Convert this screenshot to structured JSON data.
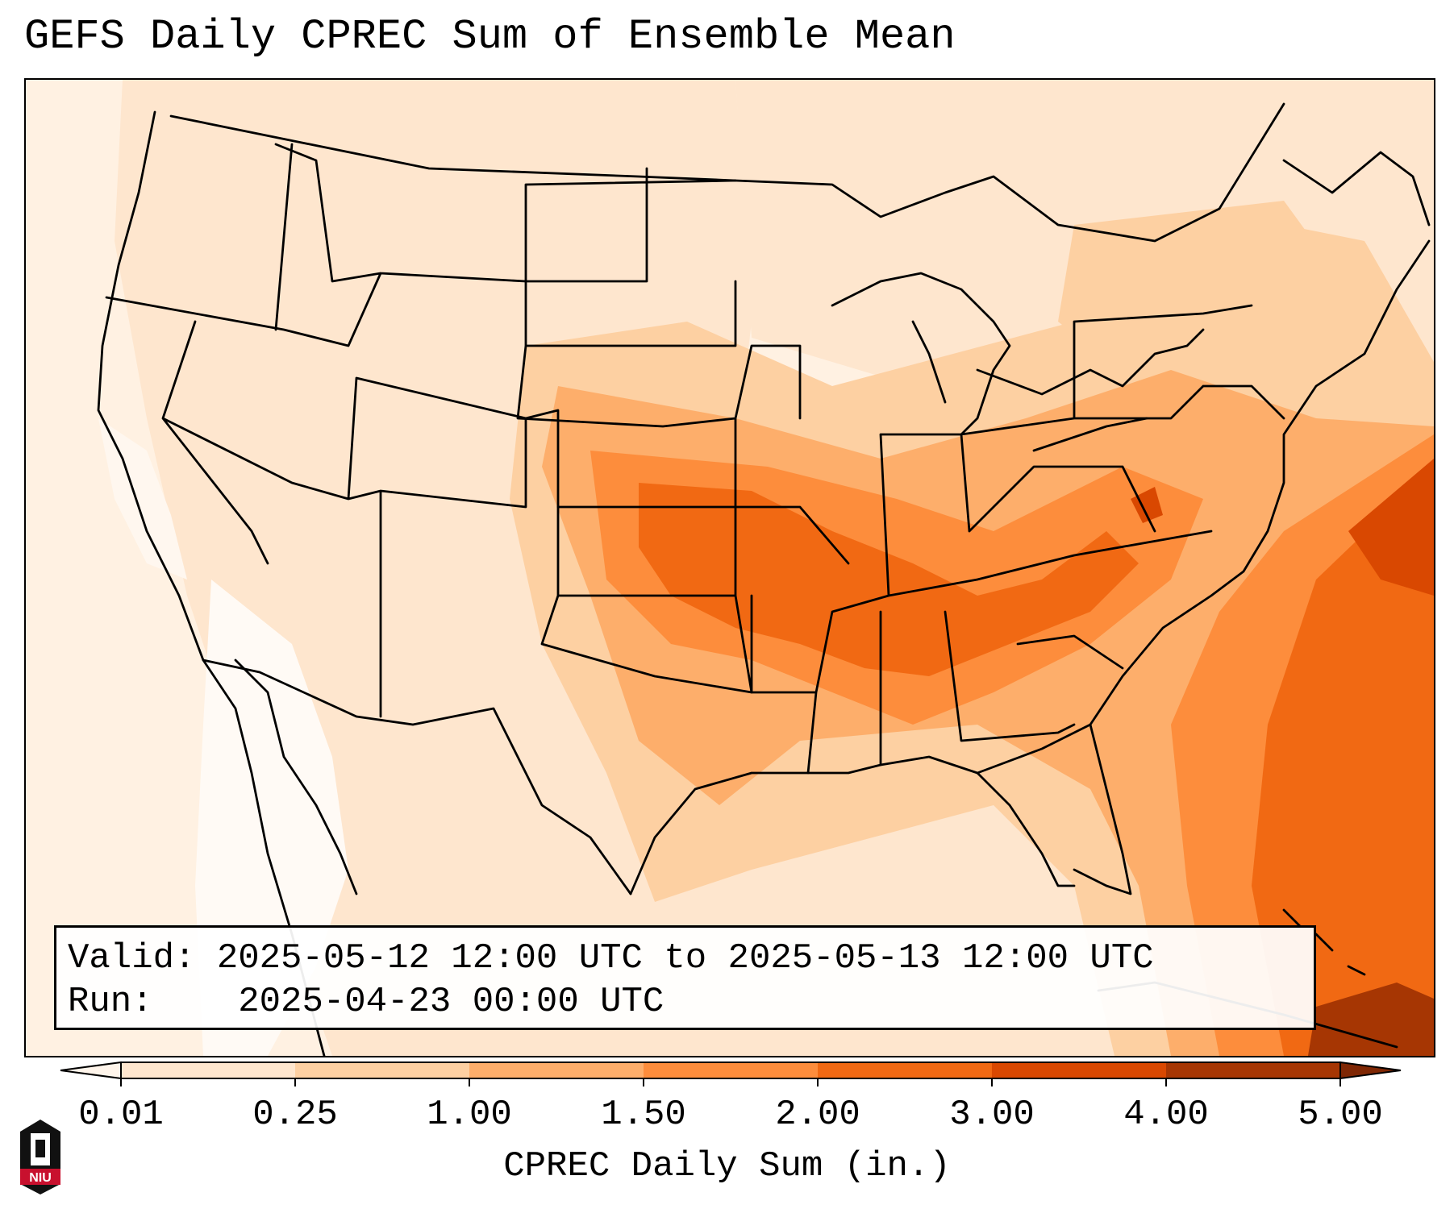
{
  "title": "GEFS Daily CPREC Sum of Ensemble Mean",
  "info": {
    "valid_prefix": "Valid:",
    "valid_value": "2025-05-12 12:00 UTC to 2025-05-13 12:00 UTC",
    "run_prefix": "Run:",
    "run_value": "2025-04-23 00:00 UTC"
  },
  "colorbar": {
    "label": "CPREC Daily Sum (in.)",
    "ticks": [
      "0.01",
      "0.25",
      "1.00",
      "1.50",
      "2.00",
      "3.00",
      "4.00",
      "5.00"
    ],
    "colors": [
      "#fff5eb",
      "#fee6ce",
      "#fdd0a2",
      "#fdae6b",
      "#fd8d3c",
      "#f16913",
      "#d94801",
      "#a63603",
      "#7f2704"
    ],
    "extend": "both"
  },
  "logo": {
    "text": "NIU"
  }
}
